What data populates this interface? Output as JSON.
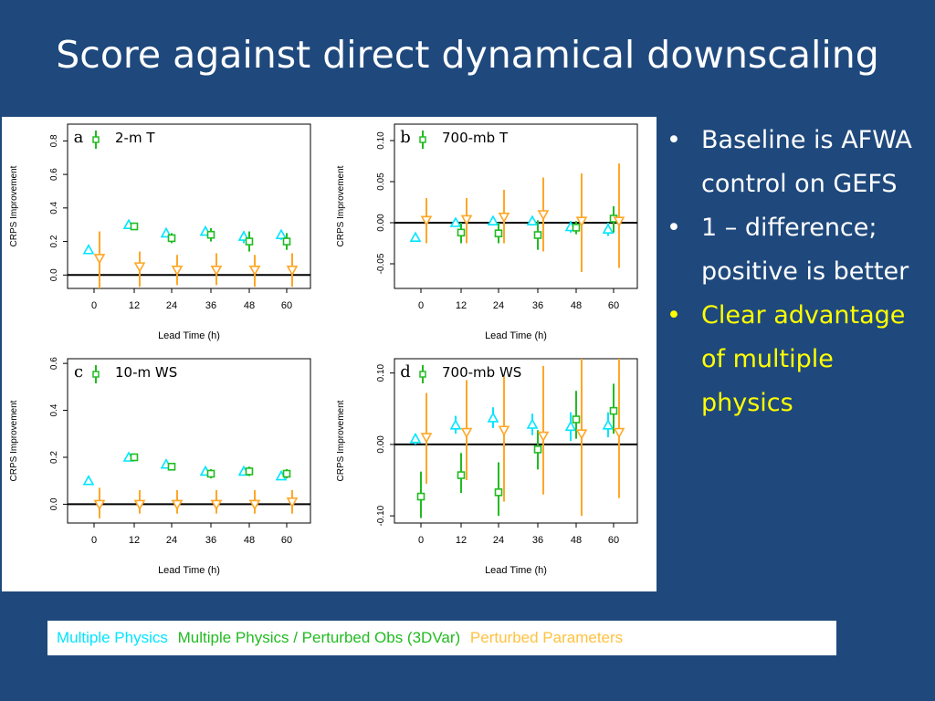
{
  "slide": {
    "title": "Score against direct dynamical downscaling",
    "bullets": [
      {
        "text": "Baseline is AFWA control on GEFS",
        "color": "#ffffff"
      },
      {
        "text": "1 – difference; positive is better",
        "color": "#ffffff"
      },
      {
        "text": "Clear advantage of multiple physics",
        "color": "#ffff00"
      }
    ],
    "legend": [
      {
        "label": "Multiple Physics",
        "color": "#00e5ff"
      },
      {
        "label": "Multiple Physics / Perturbed Obs (3DVar)",
        "color": "#22bb22"
      },
      {
        "label": "Perturbed Parameters",
        "color": "#ffc23f"
      }
    ]
  },
  "chart_data": [
    {
      "type": "scatter",
      "panel_letter": "a",
      "title": "2-m T",
      "xlabel": "Lead Time (h)",
      "ylabel": "CRPS Improvement",
      "x": [
        0,
        12,
        24,
        36,
        48,
        60
      ],
      "xticks": [
        "0",
        "12",
        "24",
        "36",
        "48",
        "60"
      ],
      "ylim": [
        -0.08,
        0.9
      ],
      "yticks": [
        "0.0",
        "0.2",
        "0.4",
        "0.6",
        "0.8"
      ],
      "ytick_values": [
        0.0,
        0.2,
        0.4,
        0.6,
        0.8
      ],
      "reference_line": 0,
      "series": [
        {
          "marker": "triangle-up",
          "color": "#00e5ff",
          "values": [
            0.15,
            0.3,
            0.25,
            0.26,
            0.23,
            0.24
          ],
          "low": [
            0.13,
            0.28,
            0.23,
            0.24,
            0.19,
            0.21
          ],
          "high": [
            0.17,
            0.32,
            0.27,
            0.28,
            0.26,
            0.26
          ]
        },
        {
          "marker": "square",
          "color": "#22bb22",
          "values": [
            null,
            0.29,
            0.22,
            0.24,
            0.2,
            0.2
          ],
          "low": [
            null,
            0.27,
            0.19,
            0.2,
            0.14,
            0.15
          ],
          "high": [
            null,
            0.31,
            0.25,
            0.28,
            0.26,
            0.25
          ]
        },
        {
          "marker": "triangle-down",
          "color": "#ffa726",
          "values": [
            0.1,
            0.05,
            0.03,
            0.03,
            0.03,
            0.03
          ],
          "low": [
            -0.08,
            -0.07,
            -0.06,
            -0.06,
            -0.07,
            -0.07
          ],
          "high": [
            0.26,
            0.14,
            0.12,
            0.13,
            0.12,
            0.13
          ]
        }
      ]
    },
    {
      "type": "scatter",
      "panel_letter": "b",
      "title": "700-mb T",
      "xlabel": "Lead Time (h)",
      "ylabel": "CRPS Improvement",
      "x": [
        0,
        12,
        24,
        36,
        48,
        60
      ],
      "xticks": [
        "0",
        "12",
        "24",
        "36",
        "48",
        "60"
      ],
      "ylim": [
        -0.08,
        0.12
      ],
      "yticks": [
        "-0.05",
        "0.00",
        "0.05",
        "0.10"
      ],
      "ytick_values": [
        -0.05,
        0.0,
        0.05,
        0.1
      ],
      "reference_line": 0,
      "series": [
        {
          "marker": "triangle-up",
          "color": "#00e5ff",
          "values": [
            -0.018,
            0.0,
            0.002,
            0.002,
            -0.005,
            -0.008
          ],
          "low": [
            -0.021,
            -0.004,
            -0.003,
            -0.003,
            -0.012,
            -0.016
          ],
          "high": [
            -0.015,
            0.004,
            0.007,
            0.007,
            0.002,
            0.0
          ]
        },
        {
          "marker": "square",
          "color": "#22bb22",
          "values": [
            null,
            -0.012,
            -0.013,
            -0.015,
            -0.006,
            0.005
          ],
          "low": [
            null,
            -0.025,
            -0.025,
            -0.033,
            -0.014,
            -0.012
          ],
          "high": [
            null,
            0.0,
            0.0,
            0.003,
            0.002,
            0.02
          ]
        },
        {
          "marker": "triangle-down",
          "color": "#ffa726",
          "values": [
            0.003,
            0.004,
            0.007,
            0.01,
            0.002,
            0.002
          ],
          "low": [
            -0.025,
            -0.025,
            -0.025,
            -0.035,
            -0.06,
            -0.055
          ],
          "high": [
            0.03,
            0.03,
            0.04,
            0.055,
            0.06,
            0.072
          ]
        }
      ]
    },
    {
      "type": "scatter",
      "panel_letter": "c",
      "title": "10-m WS",
      "xlabel": "Lead Time (h)",
      "ylabel": "CRPS Improvement",
      "x": [
        0,
        12,
        24,
        36,
        48,
        60
      ],
      "xticks": [
        "0",
        "12",
        "24",
        "36",
        "48",
        "60"
      ],
      "ylim": [
        -0.08,
        0.62
      ],
      "yticks": [
        "0.0",
        "0.2",
        "0.4",
        "0.6"
      ],
      "ytick_values": [
        0.0,
        0.2,
        0.4,
        0.6
      ],
      "reference_line": 0,
      "series": [
        {
          "marker": "triangle-up",
          "color": "#00e5ff",
          "values": [
            0.1,
            0.2,
            0.17,
            0.14,
            0.14,
            0.12
          ],
          "low": [
            0.09,
            0.19,
            0.16,
            0.13,
            0.13,
            0.11
          ],
          "high": [
            0.11,
            0.21,
            0.18,
            0.15,
            0.15,
            0.13
          ]
        },
        {
          "marker": "square",
          "color": "#22bb22",
          "values": [
            null,
            0.2,
            0.16,
            0.13,
            0.14,
            0.13
          ],
          "low": [
            null,
            0.19,
            0.15,
            0.11,
            0.12,
            0.11
          ],
          "high": [
            null,
            0.21,
            0.17,
            0.15,
            0.16,
            0.15
          ]
        },
        {
          "marker": "triangle-down",
          "color": "#ffa726",
          "values": [
            0.0,
            0.0,
            0.0,
            0.0,
            0.0,
            0.01
          ],
          "low": [
            -0.06,
            -0.04,
            -0.04,
            -0.04,
            -0.04,
            -0.04
          ],
          "high": [
            0.07,
            0.06,
            0.06,
            0.06,
            0.06,
            0.06
          ]
        }
      ]
    },
    {
      "type": "scatter",
      "panel_letter": "d",
      "title": "700-mb WS",
      "xlabel": "Lead Time (h)",
      "ylabel": "CRPS Improvement",
      "x": [
        0,
        12,
        24,
        36,
        48,
        60
      ],
      "xticks": [
        "0",
        "12",
        "24",
        "36",
        "48",
        "60"
      ],
      "ylim": [
        -0.11,
        0.12
      ],
      "yticks": [
        "-0.10",
        "0.00",
        "0.10"
      ],
      "ytick_values": [
        -0.1,
        0.0,
        0.1
      ],
      "reference_line": 0,
      "series": [
        {
          "marker": "triangle-up",
          "color": "#00e5ff",
          "values": [
            0.008,
            0.027,
            0.037,
            0.028,
            0.025,
            0.027
          ],
          "low": [
            0.0,
            0.015,
            0.023,
            0.013,
            0.005,
            0.01
          ],
          "high": [
            0.015,
            0.04,
            0.052,
            0.043,
            0.045,
            0.045
          ]
        },
        {
          "marker": "square",
          "color": "#22bb22",
          "values": [
            -0.073,
            -0.043,
            -0.067,
            -0.007,
            0.035,
            0.047
          ],
          "low": [
            -0.103,
            -0.068,
            -0.1,
            -0.035,
            0.008,
            0.015
          ],
          "high": [
            -0.038,
            -0.012,
            -0.025,
            0.02,
            0.075,
            0.085
          ]
        },
        {
          "marker": "triangle-down",
          "color": "#ffa726",
          "values": [
            0.01,
            0.017,
            0.02,
            0.012,
            0.015,
            0.017
          ],
          "low": [
            -0.055,
            -0.05,
            -0.08,
            -0.07,
            -0.1,
            -0.075
          ],
          "high": [
            0.072,
            0.09,
            0.095,
            0.11,
            0.12,
            0.12
          ]
        }
      ]
    }
  ]
}
